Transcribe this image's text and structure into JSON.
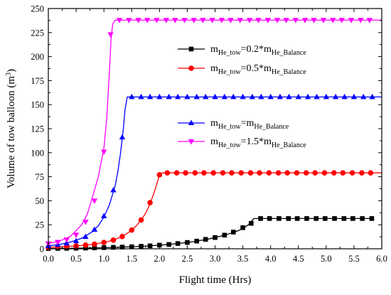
{
  "chart_data": {
    "type": "line",
    "title": "",
    "xlabel": "Flight time (Hrs)",
    "ylabel": "Volume of tow balloon (m³)",
    "ylabel_parts": {
      "main": "Volume of tow balloon (m",
      "sup": "3",
      "close": ")"
    },
    "xlim": [
      0,
      6
    ],
    "ylim": [
      0,
      250
    ],
    "xticks": [
      0.0,
      0.5,
      1.0,
      1.5,
      2.0,
      2.5,
      3.0,
      3.5,
      4.0,
      4.5,
      5.0,
      5.5,
      6.0
    ],
    "xtick_labels": [
      "0.0",
      "0.5",
      "1.0",
      "1.5",
      "2.0",
      "2.5",
      "3.0",
      "3.5",
      "4.0",
      "4.5",
      "5.0",
      "5.5",
      "6.0"
    ],
    "yticks": [
      0,
      25,
      50,
      75,
      100,
      125,
      150,
      175,
      200,
      225,
      250
    ],
    "ytick_labels": [
      "0",
      "25",
      "50",
      "75",
      "100",
      "125",
      "150",
      "175",
      "200",
      "225",
      "250"
    ],
    "grid": false,
    "legend_placement": "right, in two groups",
    "series": [
      {
        "name": "m_He_tow=0.2*m_He_Balance",
        "legend": {
          "p1": "m",
          "s1": "He_tow",
          "p2": "=0.2*m",
          "s2": "He_Balance"
        },
        "color": "#000000",
        "marker": "square",
        "x": [
          0.0,
          0.1,
          0.2,
          0.3,
          0.4,
          0.5,
          0.6,
          0.7,
          0.8,
          0.9,
          1.0,
          1.1,
          1.2,
          1.3,
          1.4,
          1.5,
          1.6,
          1.7,
          1.8,
          1.9,
          2.0,
          2.1,
          2.2,
          2.3,
          2.4,
          2.5,
          2.6,
          2.7,
          2.8,
          2.9,
          3.0,
          3.1,
          3.2,
          3.3,
          3.4,
          3.5,
          3.6,
          3.7,
          3.8,
          3.9,
          4.0,
          4.1,
          4.2,
          4.3,
          4.4,
          4.5,
          4.6,
          4.7,
          4.8,
          4.9,
          5.0,
          5.1,
          5.2,
          5.3,
          5.4,
          5.5,
          5.6,
          5.7,
          5.8,
          5.85
        ],
        "y": [
          0.3,
          0.3,
          0.4,
          0.4,
          0.5,
          0.6,
          0.7,
          0.8,
          0.9,
          1.0,
          1.2,
          1.3,
          1.5,
          1.7,
          1.9,
          2.1,
          2.4,
          2.7,
          3.0,
          3.4,
          3.8,
          4.2,
          4.7,
          5.3,
          5.9,
          6.6,
          7.4,
          8.3,
          9.3,
          10.4,
          11.7,
          13.1,
          14.7,
          16.5,
          18.5,
          21.0,
          25.0,
          31.5,
          31.5,
          31.5,
          31.5,
          31.5,
          31.5,
          31.5,
          31.5,
          31.5,
          31.5,
          31.5,
          31.5,
          31.5,
          31.5,
          31.5,
          31.5,
          31.5,
          31.5,
          31.5,
          31.5,
          31.5,
          31.5,
          31.5
        ],
        "marker_x": [
          0.0,
          0.17,
          0.33,
          0.5,
          0.67,
          0.83,
          1.0,
          1.17,
          1.33,
          1.5,
          1.67,
          1.83,
          2.0,
          2.17,
          2.33,
          2.5,
          2.67,
          2.83,
          3.0,
          3.17,
          3.33,
          3.5,
          3.65,
          3.82,
          3.98,
          4.15,
          4.32,
          4.48,
          4.65,
          4.82,
          4.98,
          5.15,
          5.32,
          5.48,
          5.65,
          5.82
        ],
        "marker_y": [
          0.3,
          0.4,
          0.5,
          0.6,
          0.8,
          1.0,
          1.2,
          1.5,
          1.8,
          2.1,
          2.6,
          3.1,
          3.8,
          4.5,
          5.5,
          6.6,
          8.0,
          9.8,
          11.7,
          14.2,
          17.4,
          22.0,
          26.5,
          31.5,
          31.5,
          31.5,
          31.5,
          31.5,
          31.5,
          31.5,
          31.5,
          31.5,
          31.5,
          31.5,
          31.5,
          31.5
        ]
      },
      {
        "name": "m_He_tow=0.5*m_He_Balance",
        "legend": {
          "p1": "m",
          "s1": "He_tow",
          "p2": "=0.5*m",
          "s2": "He_Balance"
        },
        "color": "#ff0000",
        "marker": "circle",
        "x": [
          0.0,
          0.2,
          0.4,
          0.6,
          0.8,
          1.0,
          1.1,
          1.2,
          1.3,
          1.4,
          1.5,
          1.6,
          1.7,
          1.75,
          1.8,
          1.85,
          1.9,
          1.95,
          2.0,
          2.05,
          2.2,
          2.5,
          3.0,
          3.5,
          4.0,
          4.5,
          5.0,
          5.5,
          6.0
        ],
        "y": [
          1.5,
          2.0,
          2.6,
          3.4,
          4.6,
          6.6,
          8.0,
          9.8,
          12.2,
          15.3,
          19.5,
          25.0,
          32.5,
          37.0,
          43.0,
          50.0,
          58.0,
          67.0,
          77.0,
          79.0,
          79.0,
          79.0,
          79.0,
          79.0,
          79.0,
          79.0,
          79.0,
          79.0,
          79.0
        ],
        "marker_x": [
          0.0,
          0.17,
          0.33,
          0.5,
          0.67,
          0.83,
          1.0,
          1.17,
          1.33,
          1.5,
          1.67,
          1.83,
          2.0,
          2.14,
          2.31,
          2.47,
          2.64,
          2.8,
          2.97,
          3.14,
          3.3,
          3.47,
          3.64,
          3.8,
          3.97,
          4.14,
          4.3,
          4.47,
          4.64,
          4.8,
          4.97,
          5.14,
          5.3,
          5.47,
          5.64,
          5.8
        ],
        "marker_y": [
          1.5,
          1.9,
          2.4,
          3.0,
          3.8,
          4.9,
          6.6,
          9.0,
          12.8,
          19.5,
          30.0,
          48.0,
          77.0,
          79.0,
          79.0,
          79.0,
          79.0,
          79.0,
          79.0,
          79.0,
          79.0,
          79.0,
          79.0,
          79.0,
          79.0,
          79.0,
          79.0,
          79.0,
          79.0,
          79.0,
          79.0,
          79.0,
          79.0,
          79.0,
          79.0,
          79.0
        ]
      },
      {
        "name": "m_He_tow=m_He_Balance",
        "legend": {
          "p1": "m",
          "s1": "He_tow",
          "p2": "=m",
          "s2": "He_Balance"
        },
        "color": "#0000ff",
        "marker": "triangle-up",
        "x": [
          0.0,
          0.2,
          0.4,
          0.6,
          0.8,
          0.9,
          1.0,
          1.1,
          1.2,
          1.25,
          1.3,
          1.35,
          1.38,
          1.42,
          1.5,
          2.0,
          2.5,
          3.0,
          3.5,
          4.0,
          4.5,
          5.0,
          5.5,
          6.0
        ],
        "y": [
          3.0,
          4.5,
          7.0,
          11.0,
          18.0,
          24.0,
          33.0,
          46.0,
          65.0,
          80.0,
          100.0,
          125.0,
          145.0,
          158.0,
          158.0,
          158.0,
          158.0,
          158.0,
          158.0,
          158.0,
          158.0,
          158.0,
          158.0,
          158.0
        ],
        "marker_x": [
          0.0,
          0.17,
          0.33,
          0.5,
          0.67,
          0.83,
          1.0,
          1.17,
          1.33,
          1.5,
          1.67,
          1.83,
          2.0,
          2.17,
          2.33,
          2.5,
          2.67,
          2.83,
          3.0,
          3.17,
          3.33,
          3.5,
          3.67,
          3.83,
          4.0,
          4.17,
          4.33,
          4.5,
          4.67,
          4.83,
          5.0,
          5.17,
          5.33,
          5.5,
          5.67,
          5.83
        ],
        "marker_y": [
          3.0,
          4.2,
          5.7,
          8.0,
          12.5,
          20.0,
          34.0,
          61.0,
          116.0,
          158.0,
          158.0,
          158.0,
          158.0,
          158.0,
          158.0,
          158.0,
          158.0,
          158.0,
          158.0,
          158.0,
          158.0,
          158.0,
          158.0,
          158.0,
          158.0,
          158.0,
          158.0,
          158.0,
          158.0,
          158.0,
          158.0,
          158.0,
          158.0,
          158.0,
          158.0,
          158.0
        ]
      },
      {
        "name": "m_He_tow=1.5*m_He_Balance",
        "legend": {
          "p1": "m",
          "s1": "He_tow",
          "p2": "=1.5*m",
          "s2": "He_Balance"
        },
        "color": "#ff00ff",
        "marker": "triangle-down",
        "x": [
          0.0,
          0.2,
          0.4,
          0.6,
          0.7,
          0.8,
          0.9,
          1.0,
          1.05,
          1.1,
          1.13,
          1.16,
          1.2,
          1.3,
          1.5,
          2.0,
          2.5,
          3.0,
          3.5,
          4.0,
          4.5,
          5.0,
          5.5,
          6.0
        ],
        "y": [
          5.5,
          8.0,
          13.0,
          25.0,
          36.0,
          55.0,
          75.0,
          105.0,
          135.0,
          185.0,
          220.0,
          234.0,
          238.0,
          238.0,
          238.0,
          238.0,
          238.0,
          238.0,
          238.0,
          238.0,
          238.0,
          238.0,
          238.0,
          238.0
        ],
        "marker_x": [
          0.0,
          0.17,
          0.33,
          0.5,
          0.67,
          0.83,
          1.0,
          1.12,
          1.28,
          1.45,
          1.62,
          1.78,
          1.95,
          2.12,
          2.28,
          2.45,
          2.62,
          2.78,
          2.95,
          3.12,
          3.28,
          3.45,
          3.62,
          3.78,
          3.95,
          4.12,
          4.28,
          4.45,
          4.62,
          4.78,
          4.95,
          5.12,
          5.28,
          5.45,
          5.62,
          5.78
        ],
        "marker_y": [
          5.5,
          7.0,
          9.5,
          14.5,
          28.0,
          50.0,
          101.0,
          223.0,
          238.0,
          238.0,
          238.0,
          238.0,
          238.0,
          238.0,
          238.0,
          238.0,
          238.0,
          238.0,
          238.0,
          238.0,
          238.0,
          238.0,
          238.0,
          238.0,
          238.0,
          238.0,
          238.0,
          238.0,
          238.0,
          238.0,
          238.0,
          238.0,
          238.0,
          238.0,
          238.0,
          238.0
        ]
      }
    ]
  }
}
